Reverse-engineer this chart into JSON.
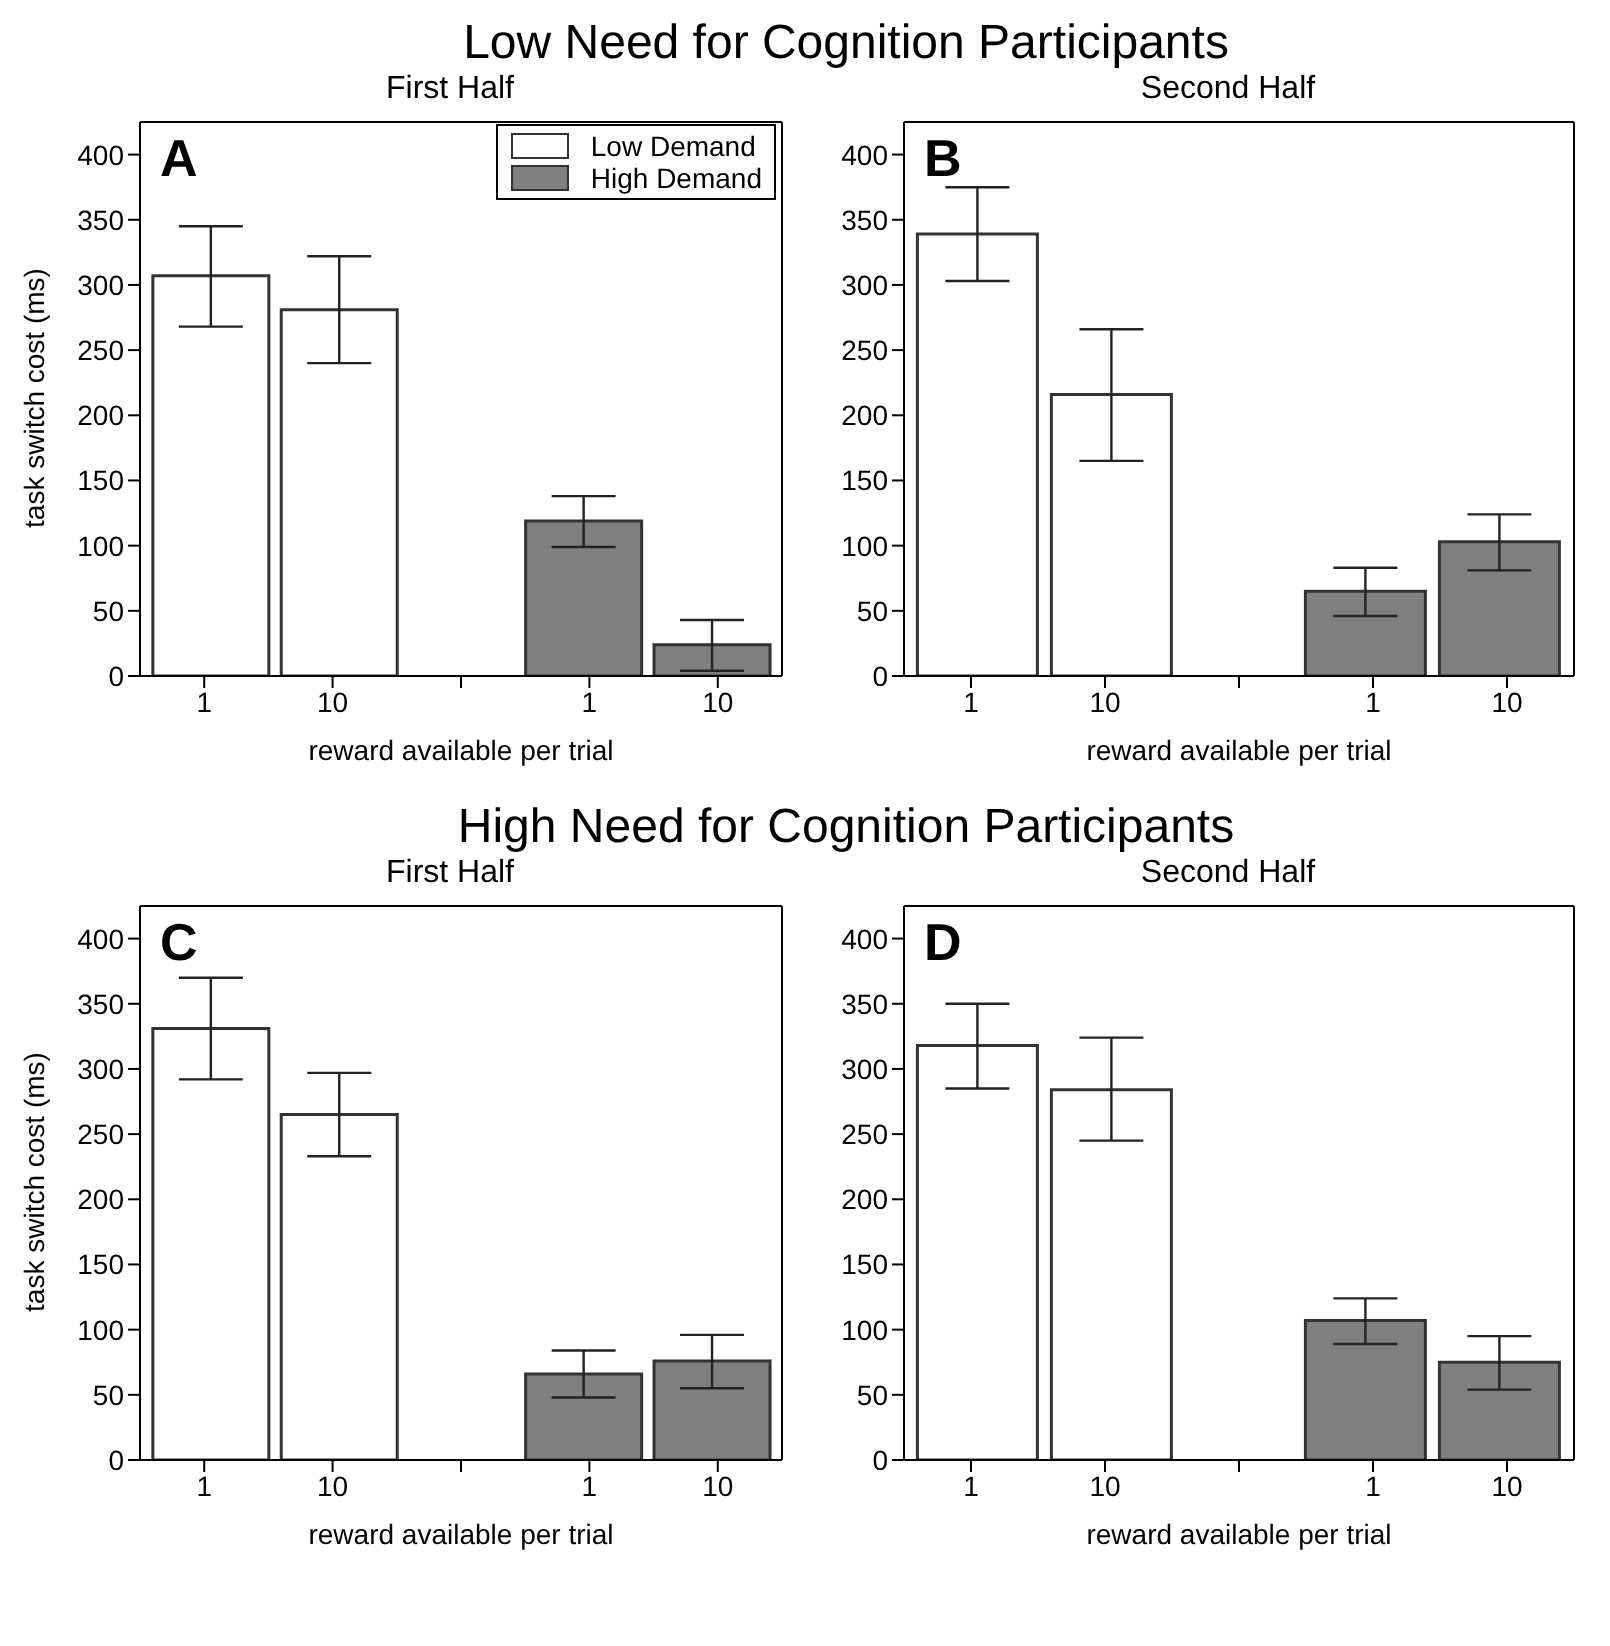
{
  "chart_data": [
    {
      "type": "bar",
      "title": "Low Need for Cognition Participants",
      "subtitle": "First Half",
      "xlabel": "reward available per trial",
      "ylabel": "task switch cost (ms)",
      "annotations": [
        "A"
      ],
      "categories": [
        "1",
        "10",
        null,
        "1",
        "10"
      ],
      "ylim": [
        0,
        425
      ],
      "yticks": [
        0,
        50,
        100,
        150,
        200,
        250,
        300,
        350,
        400
      ],
      "legend": "top right",
      "series": [
        {
          "name": "Low Demand",
          "color": "#ffffff",
          "values": [
            307,
            281,
            null,
            null,
            null
          ],
          "errors": [
            [
              268,
              345
            ],
            [
              240,
              322
            ],
            null,
            null,
            null
          ]
        },
        {
          "name": "High Demand",
          "color": "#808080",
          "values": [
            null,
            null,
            null,
            119,
            24
          ],
          "errors": [
            null,
            null,
            null,
            [
              99,
              138
            ],
            [
              4,
              43
            ]
          ]
        }
      ]
    },
    {
      "type": "bar",
      "subtitle": "Second Half",
      "xlabel": "reward available per trial",
      "annotations": [
        "B"
      ],
      "categories": [
        "1",
        "10",
        null,
        "1",
        "10"
      ],
      "ylim": [
        0,
        425
      ],
      "yticks": [
        0,
        50,
        100,
        150,
        200,
        250,
        300,
        350,
        400
      ],
      "series": [
        {
          "color": "#ffffff",
          "values": [
            339,
            216,
            null,
            null,
            null
          ],
          "errors": [
            [
              303,
              375
            ],
            [
              165,
              266
            ],
            null,
            null,
            null
          ]
        },
        {
          "color": "#808080",
          "values": [
            null,
            null,
            null,
            65,
            103
          ],
          "errors": [
            null,
            null,
            null,
            [
              46,
              83
            ],
            [
              81,
              124
            ]
          ]
        }
      ]
    },
    {
      "type": "bar",
      "title": "High Need for Cognition Participants",
      "subtitle": "First Half",
      "xlabel": "reward available per trial",
      "ylabel": "task switch cost (ms)",
      "annotations": [
        "C"
      ],
      "categories": [
        "1",
        "10",
        null,
        "1",
        "10"
      ],
      "ylim": [
        0,
        425
      ],
      "yticks": [
        0,
        50,
        100,
        150,
        200,
        250,
        300,
        350,
        400
      ],
      "series": [
        {
          "color": "#ffffff",
          "values": [
            331,
            265,
            null,
            null,
            null
          ],
          "errors": [
            [
              292,
              370
            ],
            [
              233,
              297
            ],
            null,
            null,
            null
          ]
        },
        {
          "color": "#808080",
          "values": [
            null,
            null,
            null,
            66,
            76
          ],
          "errors": [
            null,
            null,
            null,
            [
              48,
              84
            ],
            [
              55,
              96
            ]
          ]
        }
      ]
    },
    {
      "type": "bar",
      "subtitle": "Second Half",
      "xlabel": "reward available per trial",
      "annotations": [
        "D"
      ],
      "categories": [
        "1",
        "10",
        null,
        "1",
        "10"
      ],
      "ylim": [
        0,
        425
      ],
      "yticks": [
        0,
        50,
        100,
        150,
        200,
        250,
        300,
        350,
        400
      ],
      "series": [
        {
          "color": "#ffffff",
          "values": [
            318,
            284,
            null,
            null,
            null
          ],
          "errors": [
            [
              285,
              350
            ],
            [
              245,
              324
            ],
            null,
            null,
            null
          ]
        },
        {
          "color": "#808080",
          "values": [
            null,
            null,
            null,
            107,
            75
          ],
          "errors": [
            null,
            null,
            null,
            [
              89,
              124
            ],
            [
              54,
              95
            ]
          ]
        }
      ]
    }
  ]
}
